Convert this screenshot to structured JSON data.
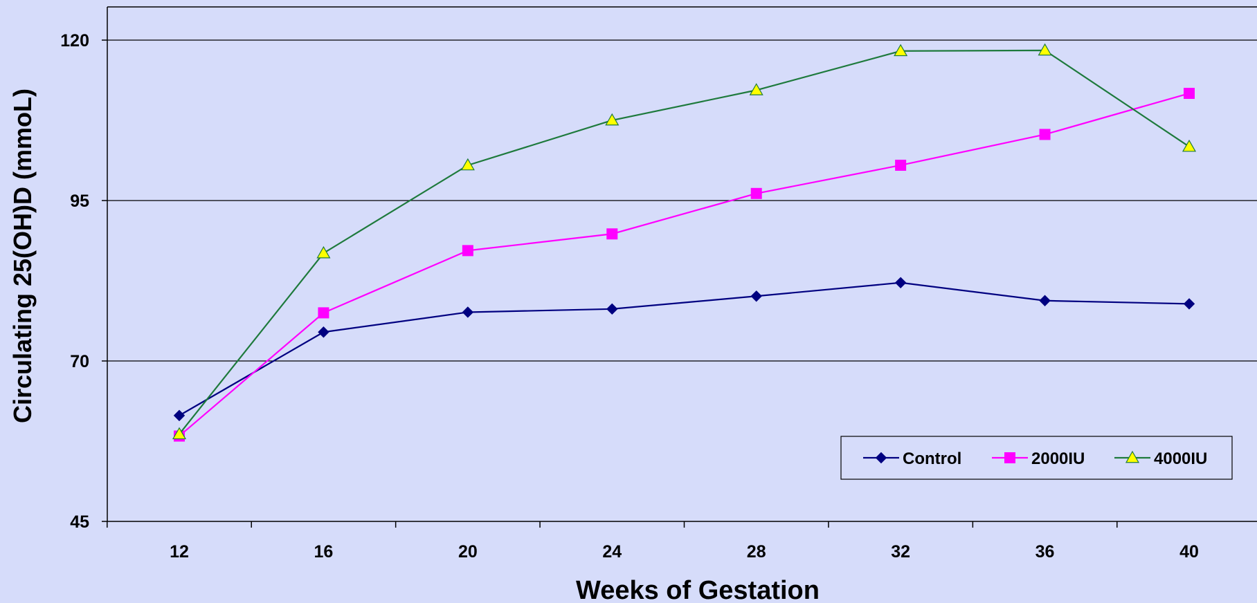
{
  "chart_data": {
    "type": "line",
    "title": "",
    "xlabel": "Weeks of Gestation",
    "ylabel": "Circulating 25(OH)D (mmoL)",
    "x": [
      12,
      16,
      20,
      24,
      28,
      32,
      36,
      40
    ],
    "xlim": [
      10,
      42
    ],
    "ylim": [
      45,
      125
    ],
    "yticks": [
      45,
      70,
      95,
      120
    ],
    "grid": "horizontal",
    "legend_position": "bottom-right",
    "background": "#d6dcfa",
    "series": [
      {
        "name": "Control",
        "color": "#000080",
        "marker": "diamond",
        "values": [
          61.5,
          74.5,
          77.6,
          78.1,
          80.1,
          82.2,
          79.4,
          78.9
        ]
      },
      {
        "name": "2000IU",
        "color": "#ff00ff",
        "marker": "square",
        "values": [
          58.3,
          77.5,
          87.2,
          89.8,
          96.1,
          100.5,
          105.3,
          111.7
        ]
      },
      {
        "name": "4000IU",
        "color": "#1e7a3c",
        "marker": "triangle",
        "values": [
          58.6,
          86.8,
          100.5,
          107.5,
          112.2,
          118.3,
          118.4,
          103.4
        ]
      }
    ]
  }
}
